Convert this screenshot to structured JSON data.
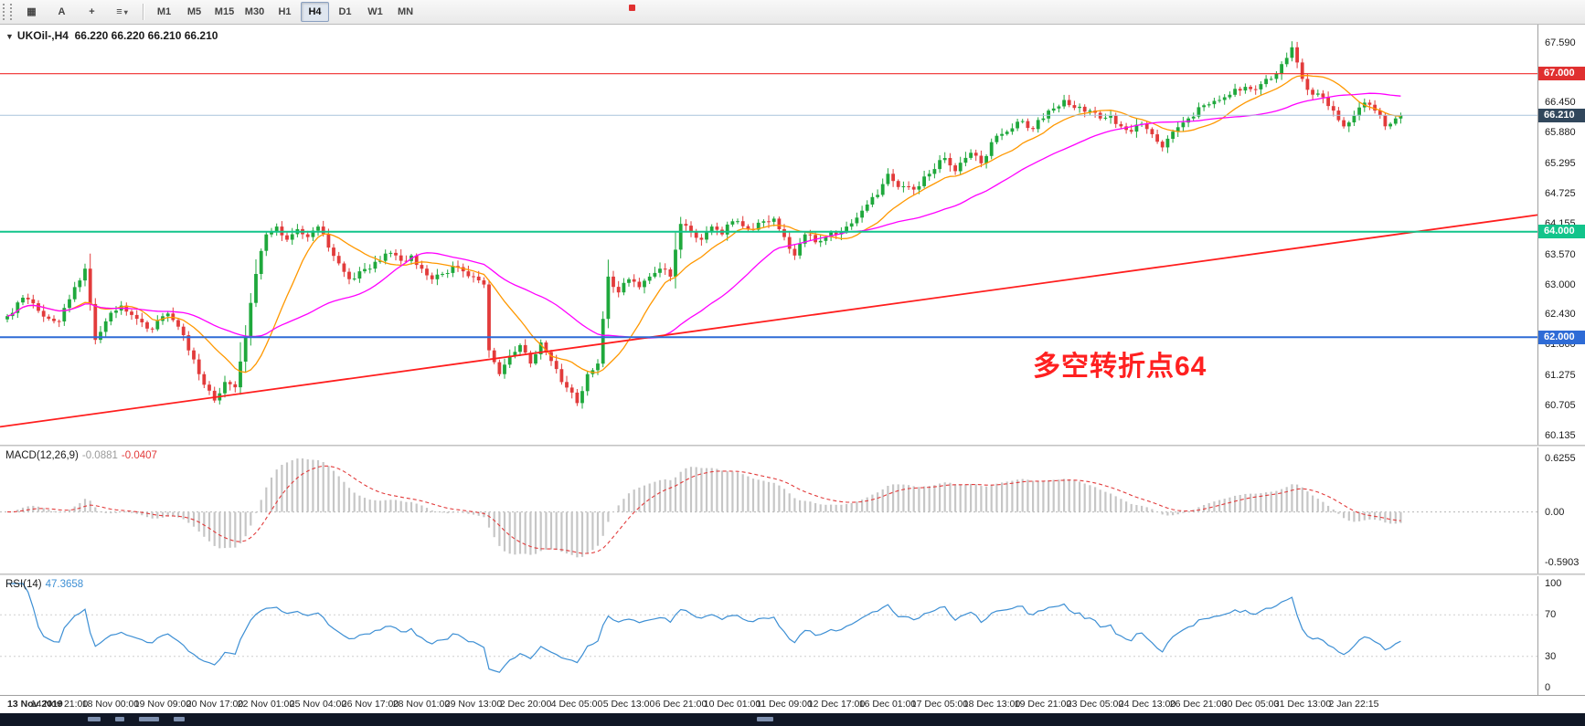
{
  "icons": {
    "chart_menu": "▼",
    "caret": "▾"
  },
  "toolbar": {
    "tools": [
      {
        "name": "chart-grid-icon",
        "glyph": "▦"
      },
      {
        "name": "text-tool-button",
        "glyph": "A"
      },
      {
        "name": "crosshair-tool-button",
        "glyph": "+"
      },
      {
        "name": "line-studies-dropdown",
        "glyph": "≡",
        "caret": true
      }
    ],
    "timeframes": [
      "M1",
      "M5",
      "M15",
      "M30",
      "H1",
      "H4",
      "D1",
      "W1",
      "MN"
    ],
    "selected": "H4"
  },
  "taskbar": {
    "segments": [
      [
        96,
        14
      ],
      [
        126,
        10
      ],
      [
        152,
        22
      ],
      [
        190,
        12
      ],
      [
        828,
        18
      ]
    ]
  },
  "chart_data": {
    "type": "candlestick",
    "symbol_title": "UKOil-,H4",
    "ohlc_display": "66.220 66.220 66.210 66.210",
    "num_candles": 270,
    "colors": {
      "up": "#1fa83c",
      "down": "#e23b3b",
      "ma_fast": "#ff9800",
      "ma_mid": "#ff00ff",
      "trendline": "#ff1e1e"
    },
    "price_axis": {
      "min": 59.96,
      "max": 67.93,
      "labels": [
        "67.590",
        "66.450",
        "65.880",
        "65.295",
        "64.725",
        "64.155",
        "63.570",
        "63.000",
        "62.430",
        "61.860",
        "61.275",
        "60.705",
        "60.135"
      ]
    },
    "levels": [
      {
        "price": 67.0,
        "label": "67.000",
        "color": "#f02b2b",
        "width": 1.2,
        "tag_bg": "#e03030"
      },
      {
        "price": 66.21,
        "label": "66.210",
        "color": "#a9c4dc",
        "width": 1,
        "tag_bg": "#31475c"
      },
      {
        "price": 64.0,
        "label": "64.000",
        "color": "#12c48b",
        "width": 2,
        "tag_bg": "#12c48b"
      },
      {
        "price": 62.0,
        "label": "62.000",
        "color": "#2e6bd6",
        "width": 2,
        "tag_bg": "#2e6bd6"
      }
    ],
    "trendline": {
      "from": [
        0,
        60.3
      ],
      "to": [
        1,
        64.32
      ],
      "width": 1.8
    },
    "moving_averages": [
      {
        "name": "fast",
        "period": 13
      },
      {
        "name": "mid",
        "period": 34
      }
    ],
    "annotation": {
      "text": "多空转折点64",
      "x_frac": 0.672,
      "price": 61.3,
      "color": "#ff2020"
    },
    "close_path": [
      [
        0,
        62.4
      ],
      [
        3,
        62.75
      ],
      [
        6,
        62.5
      ],
      [
        10,
        62.3
      ],
      [
        13,
        62.95
      ],
      [
        15,
        63.3
      ],
      [
        17,
        61.95
      ],
      [
        19,
        62.3
      ],
      [
        22,
        62.6
      ],
      [
        25,
        62.35
      ],
      [
        28,
        62.15
      ],
      [
        31,
        62.45
      ],
      [
        33,
        62.2
      ],
      [
        35,
        61.75
      ],
      [
        37,
        61.3
      ],
      [
        40,
        60.8
      ],
      [
        42,
        61.15
      ],
      [
        44,
        61.05
      ],
      [
        46,
        62.0
      ],
      [
        48,
        63.2
      ],
      [
        50,
        63.95
      ],
      [
        52,
        64.1
      ],
      [
        54,
        63.85
      ],
      [
        56,
        64.05
      ],
      [
        58,
        63.9
      ],
      [
        60,
        64.1
      ],
      [
        62,
        63.7
      ],
      [
        64,
        63.4
      ],
      [
        66,
        63.1
      ],
      [
        68,
        63.25
      ],
      [
        70,
        63.3
      ],
      [
        72,
        63.45
      ],
      [
        74,
        63.6
      ],
      [
        76,
        63.45
      ],
      [
        78,
        63.55
      ],
      [
        80,
        63.3
      ],
      [
        82,
        63.1
      ],
      [
        84,
        63.2
      ],
      [
        86,
        63.35
      ],
      [
        88,
        63.25
      ],
      [
        90,
        63.15
      ],
      [
        92,
        63.0
      ],
      [
        93,
        61.75
      ],
      [
        95,
        61.3
      ],
      [
        97,
        61.65
      ],
      [
        99,
        61.85
      ],
      [
        101,
        61.5
      ],
      [
        103,
        61.9
      ],
      [
        105,
        61.55
      ],
      [
        107,
        61.15
      ],
      [
        109,
        60.95
      ],
      [
        110,
        60.75
      ],
      [
        112,
        61.3
      ],
      [
        114,
        61.5
      ],
      [
        116,
        63.15
      ],
      [
        118,
        62.85
      ],
      [
        120,
        63.1
      ],
      [
        122,
        62.95
      ],
      [
        124,
        63.15
      ],
      [
        126,
        63.3
      ],
      [
        128,
        63.15
      ],
      [
        130,
        64.15
      ],
      [
        132,
        64.0
      ],
      [
        134,
        63.85
      ],
      [
        136,
        64.1
      ],
      [
        138,
        63.95
      ],
      [
        140,
        64.2
      ],
      [
        143,
        64.05
      ],
      [
        146,
        64.2
      ],
      [
        148,
        64.25
      ],
      [
        150,
        63.9
      ],
      [
        152,
        63.55
      ],
      [
        154,
        63.95
      ],
      [
        156,
        63.8
      ],
      [
        158,
        63.9
      ],
      [
        160,
        63.95
      ],
      [
        162,
        64.1
      ],
      [
        165,
        64.4
      ],
      [
        168,
        64.7
      ],
      [
        170,
        65.1
      ],
      [
        172,
        64.85
      ],
      [
        175,
        64.8
      ],
      [
        178,
        65.1
      ],
      [
        181,
        65.4
      ],
      [
        183,
        65.15
      ],
      [
        186,
        65.5
      ],
      [
        188,
        65.3
      ],
      [
        190,
        65.7
      ],
      [
        193,
        65.9
      ],
      [
        196,
        66.1
      ],
      [
        198,
        65.95
      ],
      [
        201,
        66.3
      ],
      [
        204,
        66.5
      ],
      [
        206,
        66.35
      ],
      [
        209,
        66.3
      ],
      [
        211,
        66.15
      ],
      [
        213,
        66.2
      ],
      [
        215,
        66.0
      ],
      [
        217,
        65.9
      ],
      [
        219,
        66.05
      ],
      [
        221,
        65.85
      ],
      [
        223,
        65.6
      ],
      [
        225,
        65.9
      ],
      [
        228,
        66.15
      ],
      [
        231,
        66.4
      ],
      [
        234,
        66.5
      ],
      [
        236,
        66.6
      ],
      [
        239,
        66.75
      ],
      [
        241,
        66.7
      ],
      [
        243,
        66.9
      ],
      [
        245,
        67.0
      ],
      [
        247,
        67.3
      ],
      [
        248,
        67.5
      ],
      [
        250,
        66.9
      ],
      [
        252,
        66.6
      ],
      [
        254,
        66.55
      ],
      [
        256,
        66.3
      ],
      [
        258,
        66.0
      ],
      [
        260,
        66.2
      ],
      [
        262,
        66.45
      ],
      [
        264,
        66.3
      ],
      [
        266,
        66.0
      ],
      [
        268,
        66.15
      ],
      [
        269,
        66.21
      ]
    ],
    "indicators": [
      {
        "name": "MACD",
        "label": "MACD(12,26,9)",
        "value_main": "-0.0881",
        "value_signal": "-0.0407",
        "scale_labels": [
          "0.6255",
          "0.00",
          "-0.5903"
        ],
        "scale_max": 0.7535,
        "scale_min": -0.7185,
        "hist_color": "#c6c6c6",
        "signal_color": "#e23b3b"
      },
      {
        "name": "RSI",
        "label": "RSI(14)",
        "value": "47.3658",
        "scale_labels": [
          "100",
          "70",
          "30",
          "0"
        ],
        "levels": [
          70,
          30
        ],
        "range": [
          0,
          100
        ],
        "line_color": "#3d8fd4"
      }
    ],
    "time_labels": [
      "13 Nov 2019",
      "14 Nov 21:00",
      "18 Nov 00:00",
      "19 Nov 09:00",
      "20 Nov 17:00",
      "22 Nov 01:00",
      "25 Nov 04:00",
      "26 Nov 17:00",
      "28 Nov 01:00",
      "29 Nov 13:00",
      "2 Dec 20:00",
      "4 Dec 05:00",
      "5 Dec 13:00",
      "6 Dec 21:00",
      "10 Dec 01:00",
      "11 Dec 09:00",
      "12 Dec 17:00",
      "16 Dec 01:00",
      "17 Dec 05:00",
      "18 Dec 13:00",
      "19 Dec 21:00",
      "23 Dec 05:00",
      "24 Dec 13:00",
      "26 Dec 21:00",
      "30 Dec 05:00",
      "31 Dec 13:00",
      "2 Jan 22:15"
    ]
  }
}
